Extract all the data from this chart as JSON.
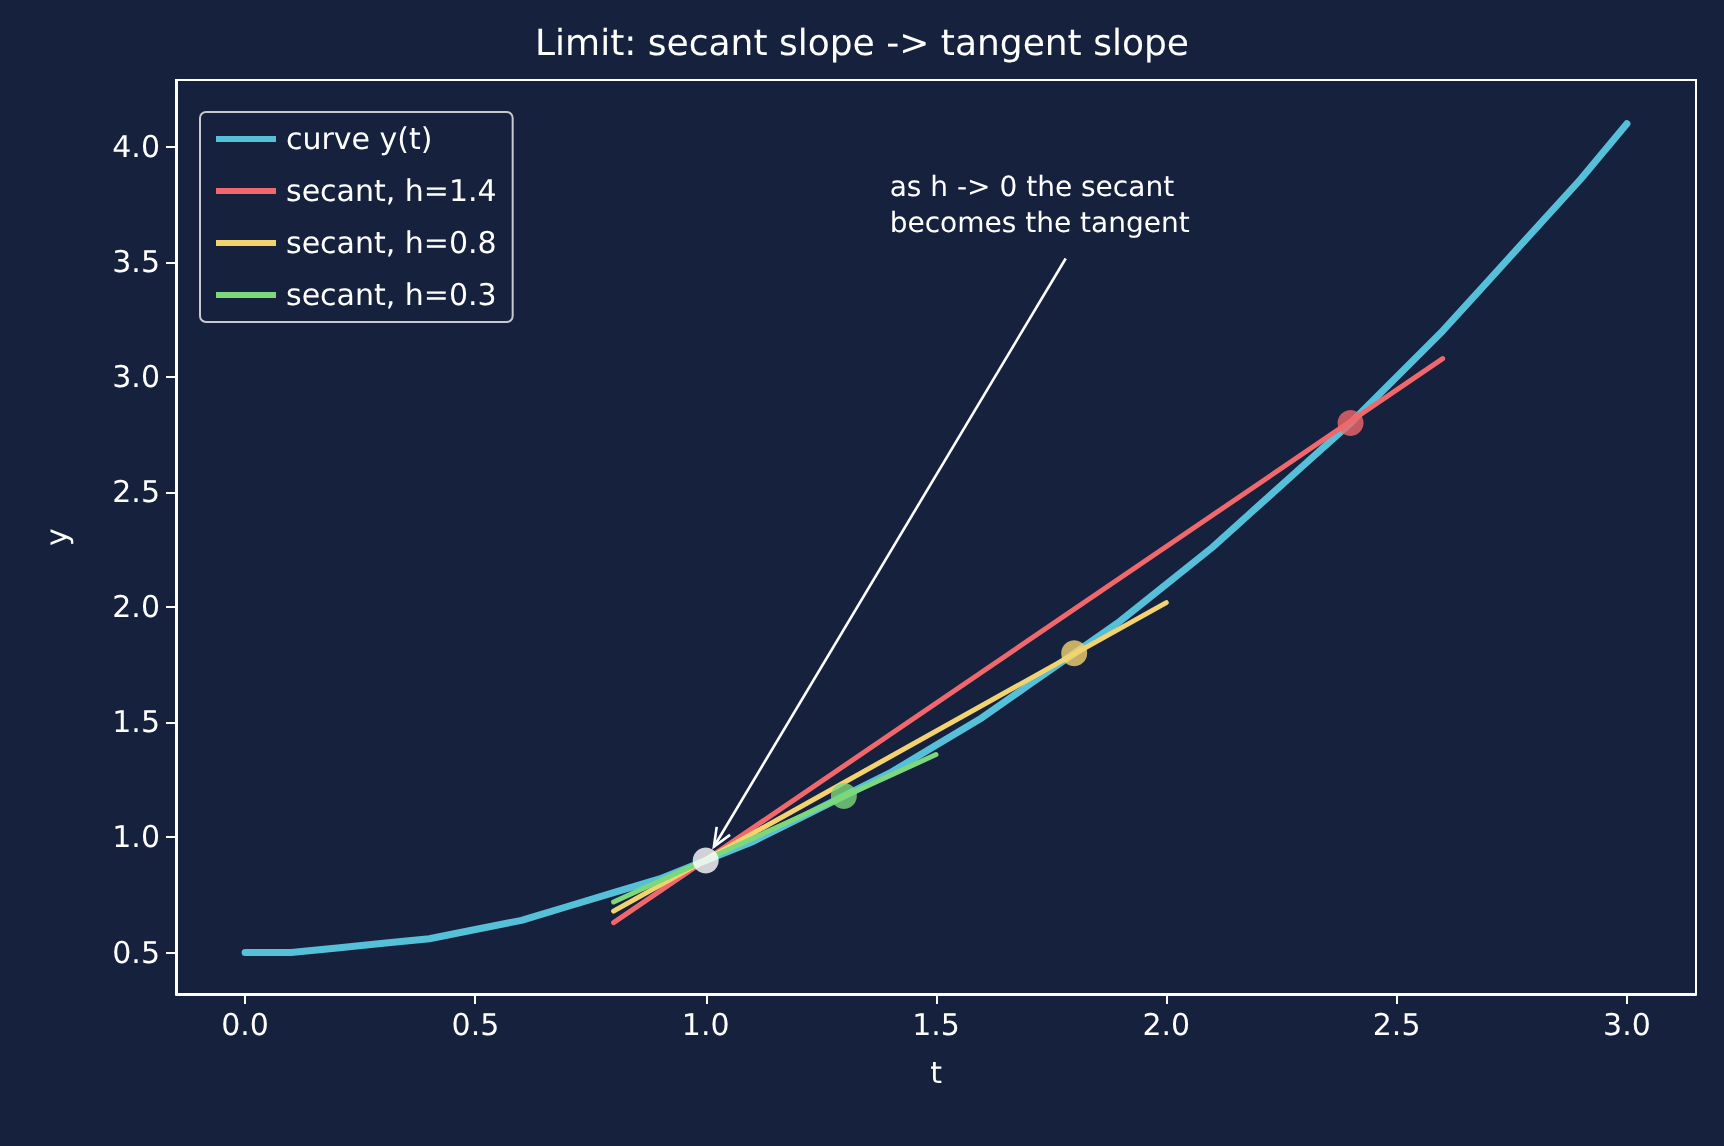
{
  "chart_data": {
    "type": "line",
    "title": "Limit: secant slope -> tangent slope",
    "xlabel": "t",
    "ylabel": "y",
    "xlim": [
      -0.15,
      3.15
    ],
    "xticks": [
      {
        "value": 0,
        "label": "0.0"
      },
      0.5,
      {
        "value": 1,
        "label": "1.0"
      },
      1.5,
      {
        "value": 2,
        "label": "2.0"
      },
      2.5,
      {
        "value": 3,
        "label": "3.0"
      }
    ],
    "ylim": [
      0.32,
      4.29
    ],
    "yticks": [
      0.5,
      {
        "value": 1,
        "label": "1.0"
      },
      1.5,
      {
        "value": 2,
        "label": "2.0"
      },
      2.5,
      {
        "value": 3,
        "label": "3.0"
      },
      3.5,
      {
        "value": 4,
        "label": "4.0"
      }
    ],
    "grid": false,
    "legend": "top left",
    "line_style": "solid",
    "marker": "none",
    "series": [
      {
        "name": "curve y(t)",
        "color": "#56c0d8",
        "x": [
          0,
          0.1,
          0.2,
          0.3,
          0.4,
          0.5,
          0.6,
          0.7,
          0.8,
          0.9,
          1.0,
          1.1,
          1.2,
          1.3,
          1.4,
          1.5,
          1.6,
          1.7,
          1.8,
          1.9,
          2.0,
          2.1,
          2.2,
          2.3,
          2.4,
          2.5,
          2.6,
          2.7,
          2.8,
          2.9,
          3.0
        ],
        "values": [
          0.5,
          0.5,
          0.52,
          0.54,
          0.56,
          0.6,
          0.64,
          0.7,
          0.76,
          0.82,
          0.9,
          0.98,
          1.08,
          1.18,
          1.28,
          1.4,
          1.52,
          1.66,
          1.8,
          1.94,
          2.1,
          2.26,
          2.44,
          2.62,
          2.8,
          3.0,
          3.2,
          3.42,
          3.64,
          3.86,
          4.1
        ]
      },
      {
        "name": "secant, h=1.4",
        "color": "#f0686c",
        "x": [
          0.8,
          2.6
        ],
        "values": [
          0.63,
          3.08
        ]
      },
      {
        "name": "secant, h=0.8",
        "color": "#f3d36f",
        "x": [
          0.8,
          2.0
        ],
        "values": [
          0.68,
          2.02
        ]
      },
      {
        "name": "secant, h=0.3",
        "color": "#7dd87b",
        "x": [
          0.8,
          1.5
        ],
        "values": [
          0.72,
          1.36
        ]
      },
      {
        "type": "scatter",
        "marker": "circle",
        "x": [
          2.4,
          1.8,
          1.3,
          1.0
        ],
        "values": [
          2.8,
          1.8,
          1.18,
          0.9
        ],
        "colors": [
          "#f0686c",
          "#f3d36f",
          "#7dd87b",
          "#ffffff"
        ]
      }
    ],
    "annotations": [
      {
        "text": "as h -> 0 the secant\nbecomes the tangent",
        "x": 1.0,
        "y": 0.9
      }
    ]
  }
}
